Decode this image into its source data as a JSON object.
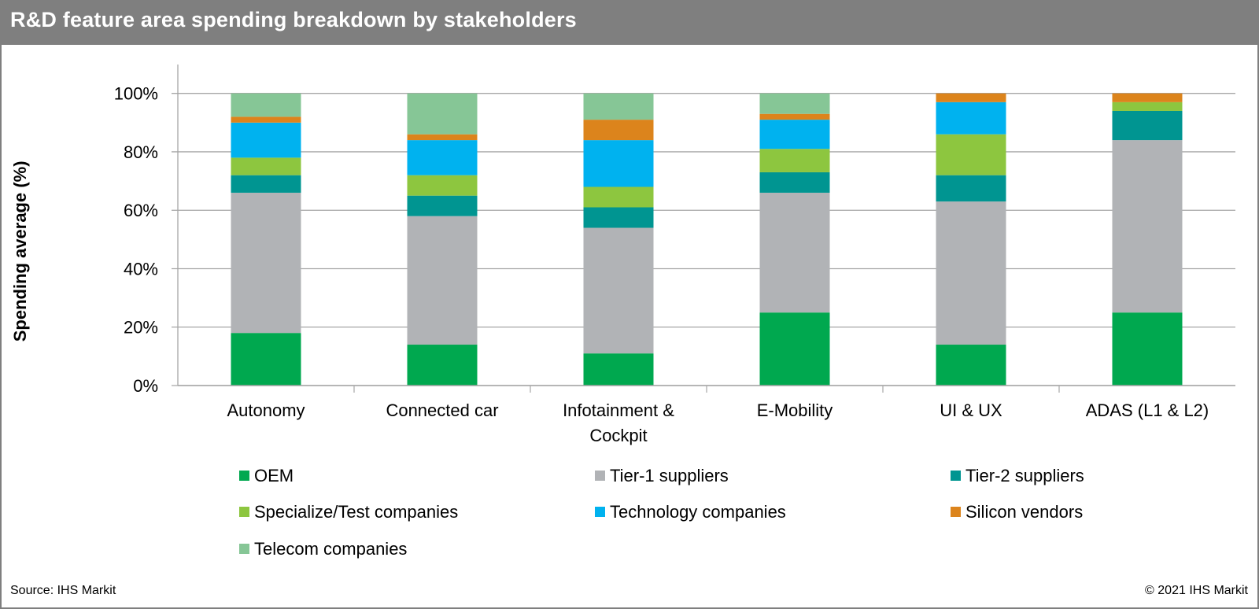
{
  "header": {
    "title": "R&D feature area spending breakdown by stakeholders"
  },
  "footer": {
    "source": "Source: IHS Markit",
    "copyright": "© 2021 IHS Markit"
  },
  "chart_data": {
    "type": "bar",
    "stacked": true,
    "title": "R&D feature area spending breakdown by stakeholders",
    "xlabel": "",
    "ylabel": "Spending average (%)",
    "ylim": [
      0,
      100
    ],
    "yticks": [
      "0%",
      "20%",
      "40%",
      "60%",
      "80%",
      "100%"
    ],
    "ytick_values": [
      0,
      20,
      40,
      60,
      80,
      100
    ],
    "grid": true,
    "legend_position": "bottom",
    "categories": [
      [
        "Autonomy"
      ],
      [
        "Connected car"
      ],
      [
        "Infotainment &",
        "Cockpit"
      ],
      [
        "E-Mobility"
      ],
      [
        "UI & UX"
      ],
      [
        "ADAS (L1 & L2)"
      ]
    ],
    "series": [
      {
        "name": "OEM",
        "color": "#00a84f",
        "values": [
          18,
          14,
          11,
          25,
          14,
          25
        ]
      },
      {
        "name": "Tier-1 suppliers",
        "color": "#b1b3b6",
        "values": [
          48,
          44,
          43,
          41,
          49,
          59
        ]
      },
      {
        "name": "Tier-2 suppliers",
        "color": "#009591",
        "values": [
          6,
          7,
          7,
          7,
          9,
          10
        ]
      },
      {
        "name": "Specialize/Test companies",
        "color": "#8dc63f",
        "values": [
          6,
          7,
          7,
          8,
          14,
          3
        ]
      },
      {
        "name": "Technology companies",
        "color": "#00b2ef",
        "values": [
          12,
          12,
          16,
          10,
          11,
          0
        ]
      },
      {
        "name": "Silicon vendors",
        "color": "#dc841c",
        "values": [
          2,
          2,
          7,
          2,
          3,
          3
        ]
      },
      {
        "name": "Telecom companies",
        "color": "#86c696",
        "values": [
          8,
          14,
          9,
          7,
          0,
          0
        ]
      }
    ]
  }
}
